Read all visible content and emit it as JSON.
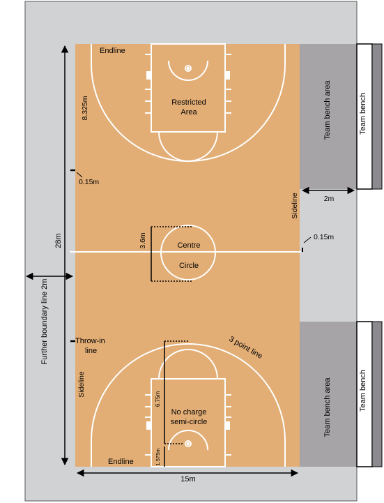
{
  "labels": {
    "endline_top": "Endline",
    "endline_bottom": "Endline",
    "restricted_area_line1": "Restricted",
    "restricted_area_line2": "Area",
    "dim_8325": "8.325m",
    "dim_015_left": "0.15m",
    "dim_015_right": "0.15m",
    "sideline_right": "Sideline",
    "sideline_left": "Sideline",
    "dim_2m_bench": "2m",
    "dim_28m": "28m",
    "dim_36": "3.6m",
    "centre": "Centre",
    "circle": "Circle",
    "further_boundary": "Further boundary line 2m",
    "throwin_line1": "Throw-in",
    "throwin_line2": "line",
    "three_point_line": "3 point line",
    "dim_675": "6.75m",
    "no_charge_line1": "No charge",
    "no_charge_line2": "semi-circle",
    "dim_1575": "1.575m",
    "dim_15m": "15m",
    "team_bench_area_top": "Team bench area",
    "team_bench_top": "Team bench",
    "team_bench_area_bottom": "Team bench area",
    "team_bench_bottom": "Team bench"
  },
  "colors": {
    "court": "#e2ae76",
    "surround": "#d1d2d4",
    "bench_area": "#a7a4a8",
    "bench_strip": "#8d8a8f",
    "lines": "#ffffff",
    "ink": "#000000"
  }
}
